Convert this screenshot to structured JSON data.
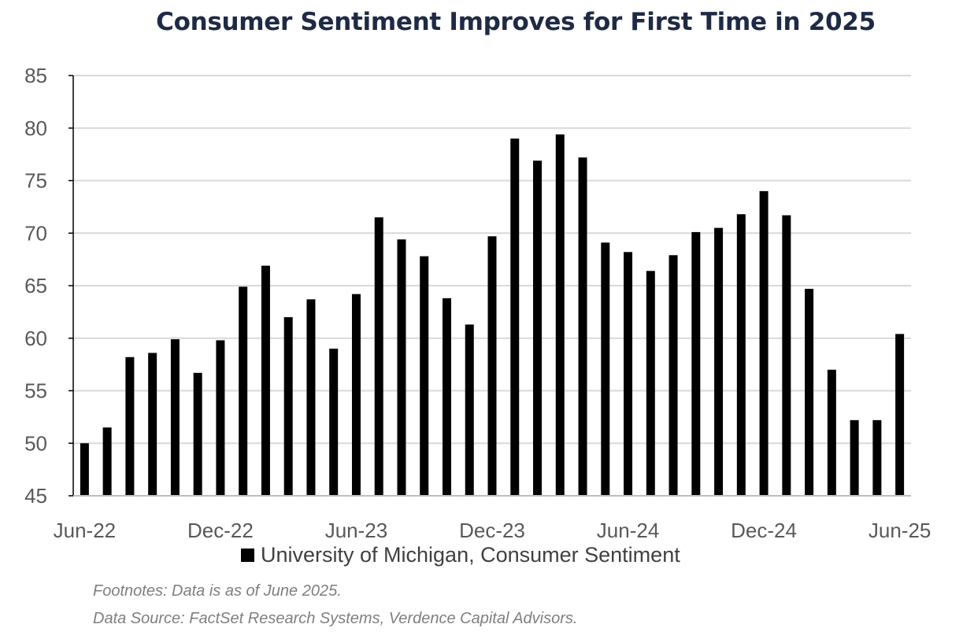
{
  "chart_data": {
    "type": "bar",
    "title": "Consumer Sentiment Improves for First Time in 2025",
    "xlabel": "",
    "ylabel": "",
    "ylim": [
      45,
      85
    ],
    "yticks": [
      45,
      50,
      55,
      60,
      65,
      70,
      75,
      80,
      85
    ],
    "grid": true,
    "legend_position": "bottom",
    "categories": [
      "Jun-22",
      "Jul-22",
      "Aug-22",
      "Sep-22",
      "Oct-22",
      "Nov-22",
      "Dec-22",
      "Jan-23",
      "Feb-23",
      "Mar-23",
      "Apr-23",
      "May-23",
      "Jun-23",
      "Jul-23",
      "Aug-23",
      "Sep-23",
      "Oct-23",
      "Nov-23",
      "Dec-23",
      "Jan-24",
      "Feb-24",
      "Mar-24",
      "Apr-24",
      "May-24",
      "Jun-24",
      "Jul-24",
      "Aug-24",
      "Sep-24",
      "Oct-24",
      "Nov-24",
      "Dec-24",
      "Jan-25",
      "Feb-25",
      "Mar-25",
      "Apr-25",
      "May-25",
      "Jun-25"
    ],
    "x_tick_labels": [
      "Jun-22",
      "Dec-22",
      "Jun-23",
      "Dec-23",
      "Jun-24",
      "Dec-24",
      "Jun-25"
    ],
    "series": [
      {
        "name": "University of Michigan, Consumer Sentiment",
        "color": "#000000",
        "values": [
          50.0,
          51.5,
          58.2,
          58.6,
          59.9,
          56.7,
          59.8,
          64.9,
          66.9,
          62.0,
          63.7,
          59.0,
          64.2,
          71.5,
          69.4,
          67.8,
          63.8,
          61.3,
          69.7,
          79.0,
          76.9,
          79.4,
          77.2,
          69.1,
          68.2,
          66.4,
          67.9,
          70.1,
          70.5,
          71.8,
          74.0,
          71.7,
          64.7,
          57.0,
          52.2,
          52.2,
          60.4
        ]
      }
    ]
  },
  "legend": {
    "label": "University of Michigan, Consumer Sentiment"
  },
  "footnotes": {
    "line1": "Footnotes: Data is as of June 2025.",
    "line2": "Data Source: FactSet Research Systems, Verdence Capital Advisors."
  }
}
